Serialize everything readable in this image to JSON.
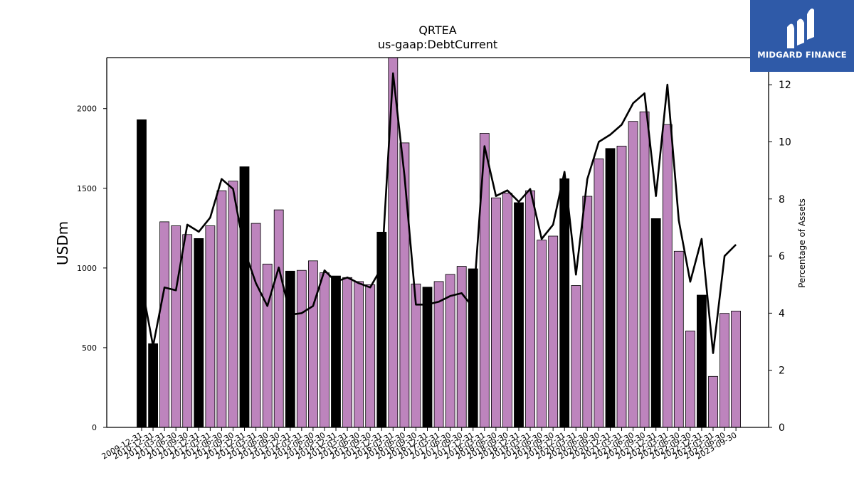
{
  "brand": {
    "name": "MIDGARD FINANCE",
    "color": "#2f5aa8"
  },
  "chart_data": {
    "type": "bar",
    "title": "QRTEA",
    "subtitle": "us-gaap:DebtCurrent",
    "ylabel": "USDm",
    "y2label": "Percentage of Assets",
    "ylim": [
      0,
      2320
    ],
    "y2lim": [
      0,
      12.95
    ],
    "yticks": [
      0,
      500,
      1000,
      1500,
      2000
    ],
    "y2ticks": [
      0,
      2,
      4,
      6,
      8,
      10,
      12
    ],
    "categories": [
      "2009-12-31",
      "2010-12-31",
      "2011-03-31",
      "2011-06-30",
      "2011-09-30",
      "2011-12-31",
      "2012-03-31",
      "2012-06-30",
      "2012-09-30",
      "2012-12-31",
      "2013-03-31",
      "2013-06-30",
      "2013-09-30",
      "2013-12-31",
      "2014-03-31",
      "2014-06-30",
      "2014-09-30",
      "2014-12-31",
      "2015-03-31",
      "2015-06-30",
      "2015-09-30",
      "2015-12-31",
      "2016-03-31",
      "2016-06-30",
      "2016-09-30",
      "2016-12-31",
      "2017-03-31",
      "2017-06-30",
      "2017-09-30",
      "2017-12-31",
      "2018-03-31",
      "2018-06-30",
      "2018-09-30",
      "2018-12-31",
      "2019-03-31",
      "2019-06-30",
      "2019-09-30",
      "2019-12-31",
      "2020-03-31",
      "2020-06-30",
      "2020-09-30",
      "2020-12-31",
      "2021-03-31",
      "2021-06-30",
      "2021-09-30",
      "2021-12-31",
      "2022-03-31",
      "2022-06-30",
      "2022-09-30",
      "2022-12-31",
      "2023-03-31",
      "2023-06-30",
      "2023-09-30"
    ],
    "values": [
      1930,
      525,
      1290,
      1265,
      1210,
      1185,
      1265,
      1485,
      1545,
      1635,
      1280,
      1025,
      1365,
      980,
      985,
      1045,
      970,
      950,
      940,
      915,
      895,
      1225,
      2320,
      1785,
      900,
      880,
      915,
      960,
      1010,
      995,
      1845,
      1440,
      1470,
      1410,
      1485,
      1175,
      1200,
      1560,
      890,
      1450,
      1685,
      1750,
      1765,
      1920,
      1980,
      1310,
      1900,
      1105,
      605,
      830,
      320,
      715,
      730
    ],
    "year_end": [
      true,
      true,
      false,
      false,
      false,
      true,
      false,
      false,
      false,
      true,
      false,
      false,
      false,
      true,
      false,
      false,
      false,
      true,
      false,
      false,
      false,
      true,
      false,
      false,
      false,
      true,
      false,
      false,
      false,
      true,
      false,
      false,
      false,
      true,
      false,
      false,
      false,
      true,
      false,
      false,
      false,
      true,
      false,
      false,
      false,
      true,
      false,
      false,
      false,
      true,
      false,
      false,
      false
    ],
    "pct_assets": [
      5.0,
      2.85,
      4.9,
      4.8,
      7.1,
      6.85,
      7.35,
      8.7,
      8.35,
      6.2,
      5.05,
      4.25,
      5.6,
      3.95,
      4.0,
      4.25,
      5.5,
      5.1,
      5.25,
      5.05,
      4.9,
      5.6,
      12.4,
      8.8,
      4.3,
      4.3,
      4.4,
      4.6,
      4.7,
      4.2,
      9.85,
      8.1,
      8.3,
      7.9,
      8.35,
      6.6,
      7.1,
      8.95,
      5.35,
      8.7,
      10.0,
      10.25,
      10.6,
      11.35,
      11.7,
      8.1,
      12.0,
      7.25,
      5.1,
      6.6,
      2.6,
      6.0,
      6.4
    ],
    "colors": {
      "bar": "#bd84bd",
      "bar_year_end": "#000000",
      "line": "#000000",
      "axis": "#000000"
    }
  }
}
